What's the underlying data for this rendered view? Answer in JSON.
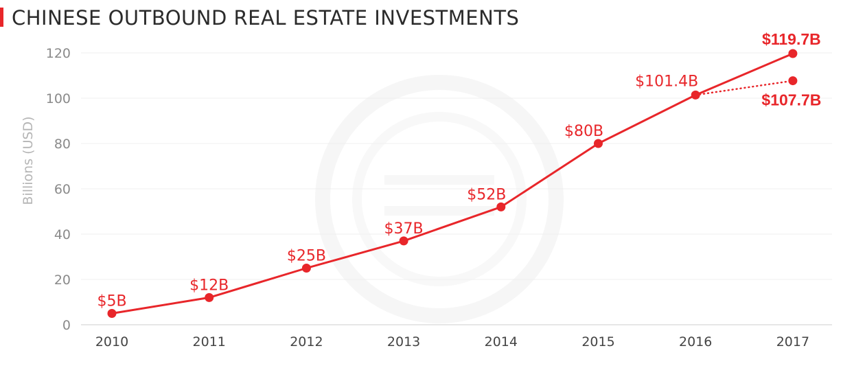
{
  "header": {
    "title": "CHINESE OUTBOUND REAL ESTATE INVESTMENTS"
  },
  "colors": {
    "accent": "#e8262a",
    "grid": "#efefef",
    "axis": "#cccccc"
  },
  "chart_data": {
    "type": "line",
    "title": "CHINESE OUTBOUND REAL ESTATE INVESTMENTS",
    "xlabel": "",
    "ylabel": "Billions (USD)",
    "ylim": [
      0,
      120
    ],
    "yticks": [
      "0",
      "20",
      "40",
      "60",
      "80",
      "100",
      "120"
    ],
    "categories": [
      "2010",
      "2011",
      "2012",
      "2013",
      "2014",
      "2015",
      "2016",
      "2017"
    ],
    "grid": true,
    "series": [
      {
        "values": [
          5,
          12,
          25,
          37,
          52,
          80,
          101.4,
          119.7
        ],
        "labels": [
          "$5B",
          "$12B",
          "$25B",
          "$37B",
          "$52B",
          "$80B",
          "$101.4B",
          "$119.7B"
        ],
        "style": "solid"
      },
      {
        "x": [
          "2016",
          "2017"
        ],
        "values": [
          101.4,
          107.7
        ],
        "labels": [
          "",
          "$107.7B"
        ],
        "style": "dotted"
      }
    ]
  }
}
